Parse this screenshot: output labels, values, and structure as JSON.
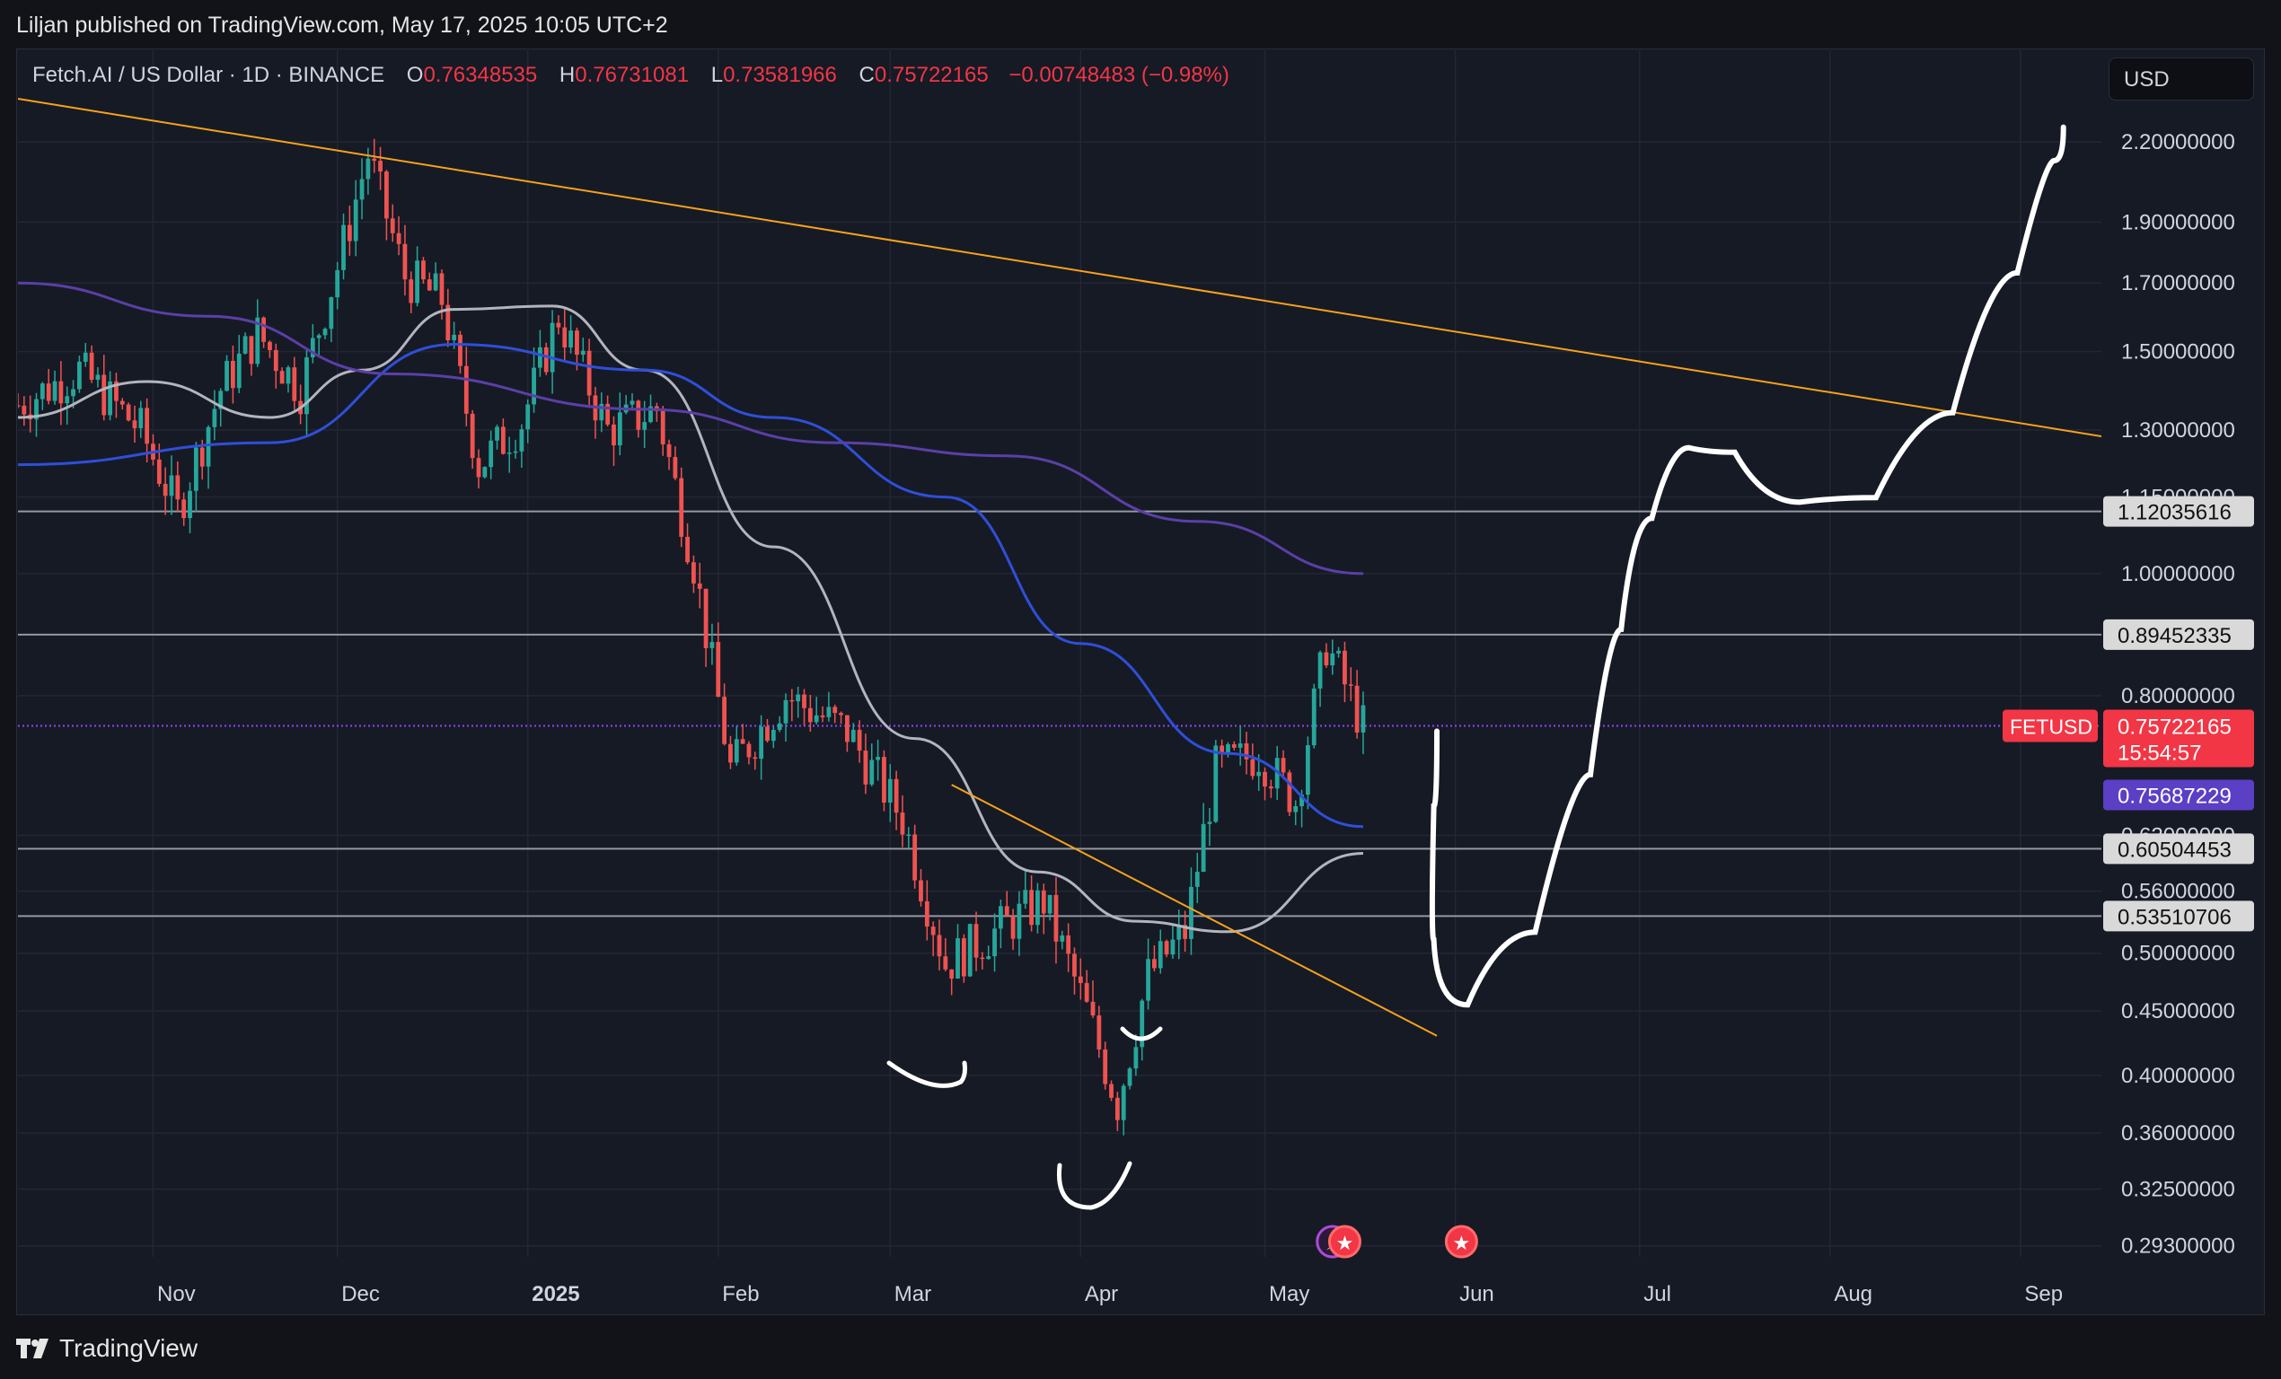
{
  "header": {
    "published": "Liljan published on TradingView.com, May 17, 2025 10:05 UTC+2"
  },
  "legend": {
    "symbol": "Fetch.AI / US Dollar · 1D · BINANCE",
    "o_label": "O",
    "o_value": "0.76348535",
    "h_label": "H",
    "h_value": "0.76731081",
    "l_label": "L",
    "l_value": "0.73581966",
    "c_label": "C",
    "c_value": "0.75722165",
    "change": "−0.00748483 (−0.98%)"
  },
  "currency_button": "USD",
  "footer": {
    "brand": "TradingView"
  },
  "colors": {
    "background": "#161a25",
    "up": "#26a69a",
    "down": "#ef5350",
    "ma_fast": "#b2b5be",
    "ma_mid": "#2f4fd9",
    "ma_slow": "#5b3fa8",
    "trendline": "#f7a21b",
    "drawing": "#ffffff",
    "current_line": "#8e44ff"
  },
  "chart_data": {
    "type": "candlestick",
    "symbol": "FETUSD",
    "scale": "log",
    "ylim": [
      0.28,
      2.5
    ],
    "x_labels": [
      "Nov",
      "Dec",
      "2025",
      "Feb",
      "Mar",
      "Apr",
      "May",
      "Jun",
      "Jul",
      "Aug",
      "Sep"
    ],
    "y_ticks": [
      "2.20000000",
      "1.90000000",
      "1.70000000",
      "1.50000000",
      "1.30000000",
      "1.15000000",
      "1.00000000",
      "0.80000000",
      "0.62000000",
      "0.56000000",
      "0.50000000",
      "0.45000000",
      "0.40000000",
      "0.36000000",
      "0.32500000",
      "0.29300000"
    ],
    "horizontal_levels": [
      {
        "value": 1.12035616,
        "label": "1.12035616"
      },
      {
        "value": 0.89452335,
        "label": "0.89452335"
      },
      {
        "value": 0.60504453,
        "label": "0.60504453"
      },
      {
        "value": 0.53510706,
        "label": "0.53510706"
      }
    ],
    "current_price": {
      "label": "FETUSD",
      "value": "0.75722165",
      "countdown": "15:54:57"
    },
    "ma_marker": {
      "value": "0.75687229"
    },
    "close_path": [
      {
        "date": "2024-10-10",
        "value": 1.36
      },
      {
        "date": "2024-10-20",
        "value": 1.45
      },
      {
        "date": "2024-10-30",
        "value": 1.3
      },
      {
        "date": "2024-11-05",
        "value": 1.12
      },
      {
        "date": "2024-11-12",
        "value": 1.4
      },
      {
        "date": "2024-11-18",
        "value": 1.55
      },
      {
        "date": "2024-11-25",
        "value": 1.4
      },
      {
        "date": "2024-12-01",
        "value": 1.75
      },
      {
        "date": "2024-12-06",
        "value": 2.15
      },
      {
        "date": "2024-12-12",
        "value": 1.72
      },
      {
        "date": "2024-12-18",
        "value": 1.65
      },
      {
        "date": "2024-12-24",
        "value": 1.22
      },
      {
        "date": "2024-12-31",
        "value": 1.32
      },
      {
        "date": "2025-01-06",
        "value": 1.6
      },
      {
        "date": "2025-01-14",
        "value": 1.3
      },
      {
        "date": "2025-01-22",
        "value": 1.35
      },
      {
        "date": "2025-01-28",
        "value": 1.02
      },
      {
        "date": "2025-02-03",
        "value": 0.7
      },
      {
        "date": "2025-02-12",
        "value": 0.8
      },
      {
        "date": "2025-02-22",
        "value": 0.75
      },
      {
        "date": "2025-03-03",
        "value": 0.64
      },
      {
        "date": "2025-03-10",
        "value": 0.49
      },
      {
        "date": "2025-03-18",
        "value": 0.52
      },
      {
        "date": "2025-03-26",
        "value": 0.55
      },
      {
        "date": "2025-04-02",
        "value": 0.45
      },
      {
        "date": "2025-04-07",
        "value": 0.38
      },
      {
        "date": "2025-04-12",
        "value": 0.48
      },
      {
        "date": "2025-04-18",
        "value": 0.52
      },
      {
        "date": "2025-04-23",
        "value": 0.7
      },
      {
        "date": "2025-04-30",
        "value": 0.72
      },
      {
        "date": "2025-05-06",
        "value": 0.66
      },
      {
        "date": "2025-05-11",
        "value": 0.88
      },
      {
        "date": "2025-05-17",
        "value": 0.757
      }
    ],
    "moving_averages": [
      {
        "name": "",
        "color_key": "ma_fast",
        "points": [
          {
            "date": "2024-10-10",
            "value": 1.33
          },
          {
            "date": "2024-10-31",
            "value": 1.42
          },
          {
            "date": "2024-11-20",
            "value": 1.33
          },
          {
            "date": "2024-12-05",
            "value": 1.45
          },
          {
            "date": "2024-12-20",
            "value": 1.62
          },
          {
            "date": "2025-01-05",
            "value": 1.63
          },
          {
            "date": "2025-01-20",
            "value": 1.45
          },
          {
            "date": "2025-02-10",
            "value": 1.05
          },
          {
            "date": "2025-03-05",
            "value": 0.74
          },
          {
            "date": "2025-03-25",
            "value": 0.58
          },
          {
            "date": "2025-04-10",
            "value": 0.53
          },
          {
            "date": "2025-04-25",
            "value": 0.52
          },
          {
            "date": "2025-05-17",
            "value": 0.6
          }
        ]
      },
      {
        "name": "",
        "color_key": "ma_mid",
        "points": [
          {
            "date": "2024-10-10",
            "value": 1.22
          },
          {
            "date": "2024-11-20",
            "value": 1.27
          },
          {
            "date": "2024-12-20",
            "value": 1.52
          },
          {
            "date": "2025-01-20",
            "value": 1.45
          },
          {
            "date": "2025-02-10",
            "value": 1.33
          },
          {
            "date": "2025-03-10",
            "value": 1.15
          },
          {
            "date": "2025-04-01",
            "value": 0.88
          },
          {
            "date": "2025-04-25",
            "value": 0.72
          },
          {
            "date": "2025-05-17",
            "value": 0.63
          }
        ]
      },
      {
        "name": "",
        "color_key": "ma_slow",
        "points": [
          {
            "date": "2024-10-10",
            "value": 1.7
          },
          {
            "date": "2024-11-10",
            "value": 1.6
          },
          {
            "date": "2024-12-10",
            "value": 1.44
          },
          {
            "date": "2025-01-20",
            "value": 1.35
          },
          {
            "date": "2025-02-20",
            "value": 1.27
          },
          {
            "date": "2025-03-20",
            "value": 1.24
          },
          {
            "date": "2025-04-20",
            "value": 1.1
          },
          {
            "date": "2025-05-17",
            "value": 1.0
          }
        ]
      }
    ],
    "trendlines": [
      {
        "from": {
          "date": "2024-10-10",
          "value": 2.38
        },
        "to": {
          "date": "2025-09-25",
          "value": 1.26
        }
      },
      {
        "from": {
          "date": "2025-03-11",
          "value": 0.68
        },
        "to": {
          "date": "2025-05-29",
          "value": 0.43
        }
      }
    ],
    "drawn_projection": [
      {
        "date": "2025-05-29",
        "value": 0.75
      },
      {
        "date": "2025-05-28",
        "value": 0.57
      },
      {
        "date": "2025-05-29",
        "value": 0.46
      },
      {
        "date": "2025-06-08",
        "value": 0.45
      },
      {
        "date": "2025-06-20",
        "value": 0.6
      },
      {
        "date": "2025-06-26",
        "value": 0.8
      },
      {
        "date": "2025-06-30",
        "value": 1.02
      },
      {
        "date": "2025-07-06",
        "value": 1.2
      },
      {
        "date": "2025-07-12",
        "value": 1.32
      },
      {
        "date": "2025-07-21",
        "value": 1.18
      },
      {
        "date": "2025-08-02",
        "value": 1.1
      },
      {
        "date": "2025-08-15",
        "value": 1.2
      },
      {
        "date": "2025-08-27",
        "value": 1.5
      },
      {
        "date": "2025-09-05",
        "value": 2.0
      },
      {
        "date": "2025-09-08",
        "value": 2.26
      }
    ],
    "event_icons": [
      {
        "date": "2025-05-12",
        "icon": "lightning-icon"
      },
      {
        "date": "2025-05-14",
        "icon": "us-flag-icon"
      },
      {
        "date": "2025-06-02",
        "icon": "us-flag-icon"
      }
    ]
  }
}
